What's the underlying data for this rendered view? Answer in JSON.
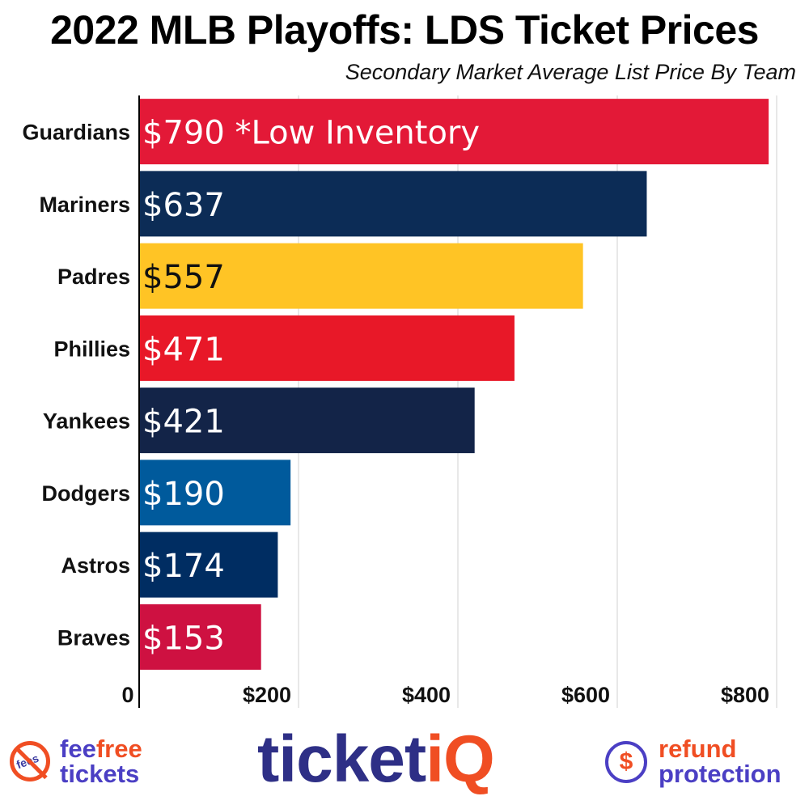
{
  "chart_data": {
    "type": "bar",
    "orientation": "horizontal",
    "title": "2022 MLB Playoffs: LDS Ticket Prices",
    "subtitle": "Secondary Market Average List Price By Team",
    "categories": [
      "Guardians",
      "Mariners",
      "Padres",
      "Phillies",
      "Yankees",
      "Dodgers",
      "Astros",
      "Braves"
    ],
    "values": [
      790,
      637,
      557,
      471,
      421,
      190,
      174,
      153
    ],
    "data_labels": [
      "$790 *Low Inventory",
      "$637",
      "$557",
      "$471",
      "$421",
      "$190",
      "$174",
      "$153"
    ],
    "bar_colors": [
      "#e31937",
      "#0c2c56",
      "#ffc425",
      "#e81828",
      "#132448",
      "#005a9c",
      "#002d62",
      "#ce1141"
    ],
    "label_colors": [
      "#ffffff",
      "#ffffff",
      "#111111",
      "#ffffff",
      "#ffffff",
      "#ffffff",
      "#ffffff",
      "#ffffff"
    ],
    "x_ticks": [
      0,
      200,
      400,
      600,
      800
    ],
    "x_tick_labels": [
      "0",
      "$200",
      "$400",
      "$600",
      "$800"
    ],
    "xlim": [
      0,
      800
    ],
    "grid": true
  },
  "footer": {
    "fee_icon_word": "fees",
    "fee_line1a": "fee",
    "fee_line1b": "free",
    "fee_line2": "tickets",
    "brand_main": "ticket",
    "brand_accent": "iQ",
    "refund_symbol": "$",
    "refund_line1": "refund",
    "refund_line2": "protection"
  }
}
